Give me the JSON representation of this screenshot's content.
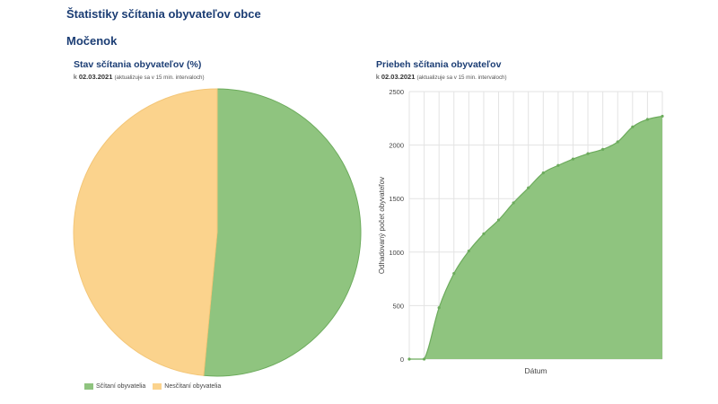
{
  "header": {
    "title": "Štatistiky sčítania obyvateľov obce",
    "town": "Močenok"
  },
  "pie_panel": {
    "title": "Stav sčítania obyvateľov (%)",
    "sub_prefix": "k",
    "date": "02.03.2021",
    "note": "(aktualizuje sa v 15 min. intervaloch)"
  },
  "line_panel": {
    "title": "Priebeh sčítania obyvateľov",
    "sub_prefix": "k",
    "date": "02.03.2021",
    "note": "(aktualizuje sa v 15 min. intervaloch)"
  },
  "colors": {
    "counted": "#8fc47f",
    "counted_stroke": "#6cab5c",
    "not_counted": "#fbd38d",
    "not_counted_stroke": "#f3c678",
    "grid": "#e3e3e3"
  },
  "chart_data": [
    {
      "type": "pie",
      "slices": [
        {
          "label": "Sčítaní obyvatelia",
          "value": 51.5
        },
        {
          "label": "Nesčítaní obyvatelia",
          "value": 48.5
        }
      ],
      "legend": "bottom-left"
    },
    {
      "type": "area",
      "xlabel": "Dátum",
      "ylabel": "Odhadovaný počet obyvateľov",
      "ylim": [
        0,
        2500
      ],
      "yticks": [
        0,
        500,
        1000,
        1500,
        2000,
        2500
      ],
      "x": [
        0,
        1,
        2,
        3,
        4,
        5,
        6,
        7,
        8,
        9,
        10,
        11,
        12,
        13,
        14,
        15,
        16,
        17
      ],
      "values": [
        0,
        0,
        480,
        800,
        1010,
        1170,
        1300,
        1460,
        1600,
        1740,
        1810,
        1870,
        1920,
        1960,
        2030,
        2170,
        2240,
        2270
      ],
      "grid": true
    }
  ]
}
